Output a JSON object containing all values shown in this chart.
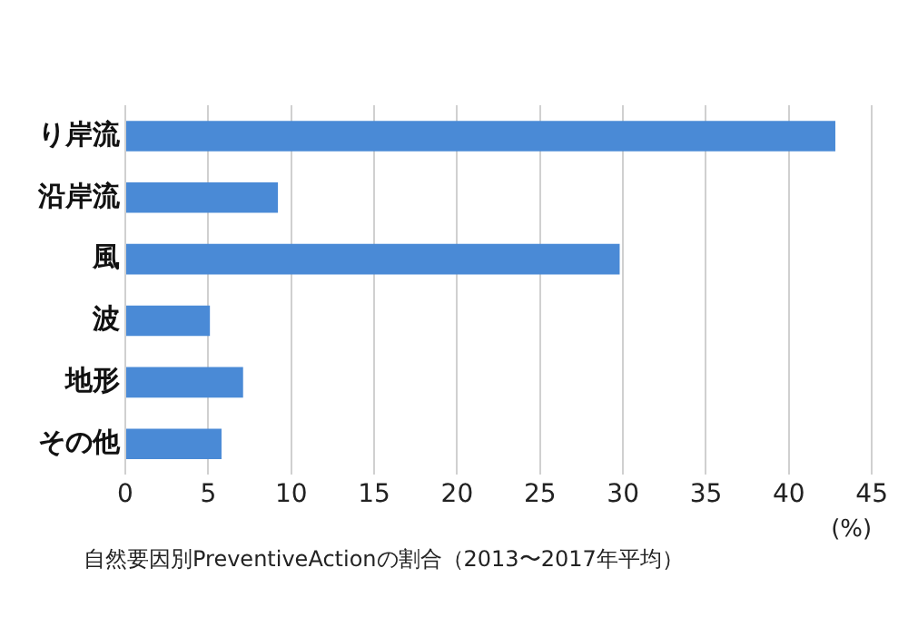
{
  "chart_data": {
    "type": "bar",
    "orientation": "horizontal",
    "categories": [
      "り岸流",
      "沿岸流",
      "風",
      "波",
      "地形",
      "その他"
    ],
    "values": [
      42.8,
      9.2,
      29.8,
      5.1,
      7.1,
      5.8
    ],
    "color": "#4a8ad6",
    "xlim": [
      0,
      45
    ],
    "xticks": [
      0,
      5,
      10,
      15,
      20,
      25,
      30,
      35,
      40,
      45
    ],
    "grid": "x",
    "legend": false,
    "xlabel": "(%)",
    "annotations": [
      "自然要因別PreventiveActionの割合（2013〜2017年平均）"
    ]
  }
}
